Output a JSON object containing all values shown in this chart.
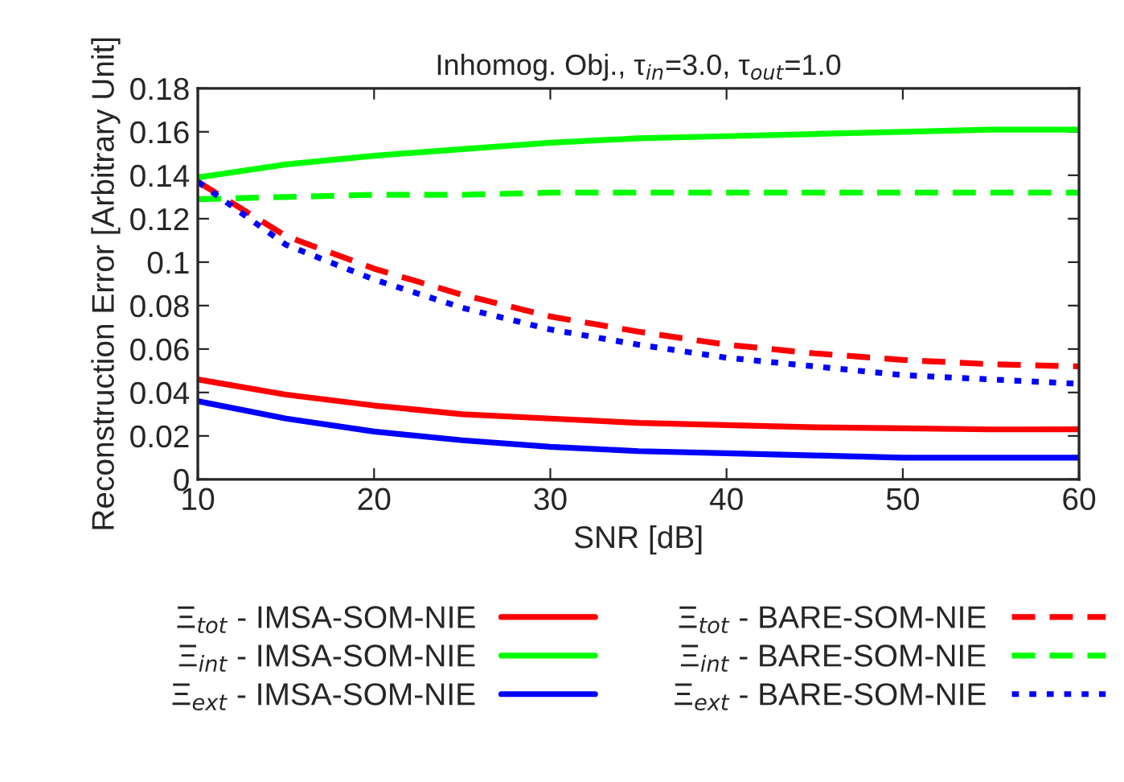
{
  "chart_data": {
    "type": "line",
    "title": "Inhomog. Obj., τ$_{in}$=3.0, τ$_{out}$=1.0",
    "xlabel": "SNR [dB]",
    "ylabel": "Reconstruction Error [Arbitrary Unit]",
    "x": [
      10,
      15,
      20,
      25,
      30,
      35,
      40,
      45,
      50,
      55,
      60
    ],
    "series": [
      {
        "name": "Ξ$_{tot}$ - IMSA-SOM-NIE",
        "color": "#ff0000",
        "line_style": "solid",
        "values": [
          0.046,
          0.039,
          0.034,
          0.03,
          0.028,
          0.026,
          0.025,
          0.024,
          0.0235,
          0.023,
          0.023
        ]
      },
      {
        "name": "Ξ$_{int}$ - IMSA-SOM-NIE",
        "color": "#00ff00",
        "line_style": "solid",
        "values": [
          0.139,
          0.145,
          0.149,
          0.152,
          0.155,
          0.157,
          0.158,
          0.159,
          0.16,
          0.161,
          0.161
        ]
      },
      {
        "name": "Ξ$_{ext}$ - IMSA-SOM-NIE",
        "color": "#0000ff",
        "line_style": "solid",
        "values": [
          0.036,
          0.028,
          0.022,
          0.018,
          0.015,
          0.013,
          0.012,
          0.011,
          0.01,
          0.01,
          0.01
        ]
      },
      {
        "name": "Ξ$_{tot}$ - BARE-SOM-NIE",
        "color": "#ff0000",
        "line_style": "dashed",
        "values": [
          0.137,
          0.112,
          0.097,
          0.085,
          0.075,
          0.068,
          0.062,
          0.058,
          0.055,
          0.053,
          0.052
        ]
      },
      {
        "name": "Ξ$_{int}$ - BARE-SOM-NIE",
        "color": "#00ff00",
        "line_style": "dashed",
        "values": [
          0.129,
          0.13,
          0.131,
          0.131,
          0.132,
          0.132,
          0.132,
          0.132,
          0.132,
          0.132,
          0.132
        ]
      },
      {
        "name": "Ξ$_{ext}$ - BARE-SOM-NIE",
        "color": "#0000ff",
        "line_style": "dotted",
        "values": [
          0.137,
          0.108,
          0.092,
          0.079,
          0.069,
          0.062,
          0.056,
          0.052,
          0.048,
          0.046,
          0.044
        ]
      }
    ],
    "xlim": [
      10,
      60
    ],
    "xticks": [
      10,
      20,
      30,
      40,
      50,
      60
    ],
    "ylim": [
      0,
      0.18
    ],
    "yticks": [
      0,
      0.02,
      0.04,
      0.06,
      0.08,
      0.1,
      0.12,
      0.14,
      0.16,
      0.18
    ],
    "grid": false,
    "legend": "bottom",
    "marker": "none"
  }
}
